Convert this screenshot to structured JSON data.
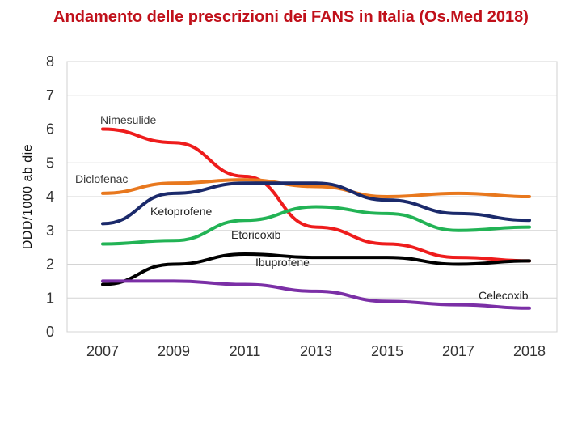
{
  "chart_data": {
    "type": "line",
    "title": "Andamento delle prescrizioni dei FANS in Italia (Os.Med 2018)",
    "xlabel": "",
    "ylabel": "DDD/1000 ab die",
    "x": [
      "2007",
      "2009",
      "2011",
      "2013",
      "2015",
      "2017",
      "2018"
    ],
    "ylim": [
      0,
      8
    ],
    "yticks": [
      "0",
      "1",
      "2",
      "3",
      "4",
      "5",
      "6",
      "7",
      "8"
    ],
    "grid": true,
    "series": [
      {
        "name": "Nimesulide",
        "color": "#ee1c1c",
        "values": [
          6.0,
          5.6,
          4.6,
          3.1,
          2.6,
          2.2,
          2.1
        ]
      },
      {
        "name": "Diclofenac",
        "color": "#e8781e",
        "values": [
          4.1,
          4.4,
          4.5,
          4.3,
          4.0,
          4.1,
          4.0
        ]
      },
      {
        "name": "Ketoprofene",
        "color": "#1b2a6b",
        "values": [
          3.2,
          4.1,
          4.4,
          4.4,
          3.9,
          3.5,
          3.3
        ]
      },
      {
        "name": "Etoricoxib",
        "color": "#22b355",
        "values": [
          2.6,
          2.7,
          3.3,
          3.7,
          3.5,
          3.0,
          3.1
        ]
      },
      {
        "name": "Ibuprofene",
        "color": "#000000",
        "values": [
          1.4,
          2.0,
          2.3,
          2.2,
          2.2,
          2.0,
          2.1
        ]
      },
      {
        "name": "Celecoxib",
        "color": "#7b2fa6",
        "values": [
          1.5,
          1.5,
          1.4,
          1.2,
          0.9,
          0.8,
          0.7
        ]
      }
    ],
    "annotations": [
      {
        "text": "Nimesulide",
        "series": "Nimesulide"
      },
      {
        "text": "Diclofenac",
        "series": "Diclofenac"
      },
      {
        "text": "Ketoprofene",
        "series": "Ketoprofene"
      },
      {
        "text": "Etoricoxib",
        "series": "Etoricoxib"
      },
      {
        "text": "Ibuprofene",
        "series": "Ibuprofene"
      },
      {
        "text": "Celecoxib",
        "series": "Celecoxib"
      }
    ]
  }
}
